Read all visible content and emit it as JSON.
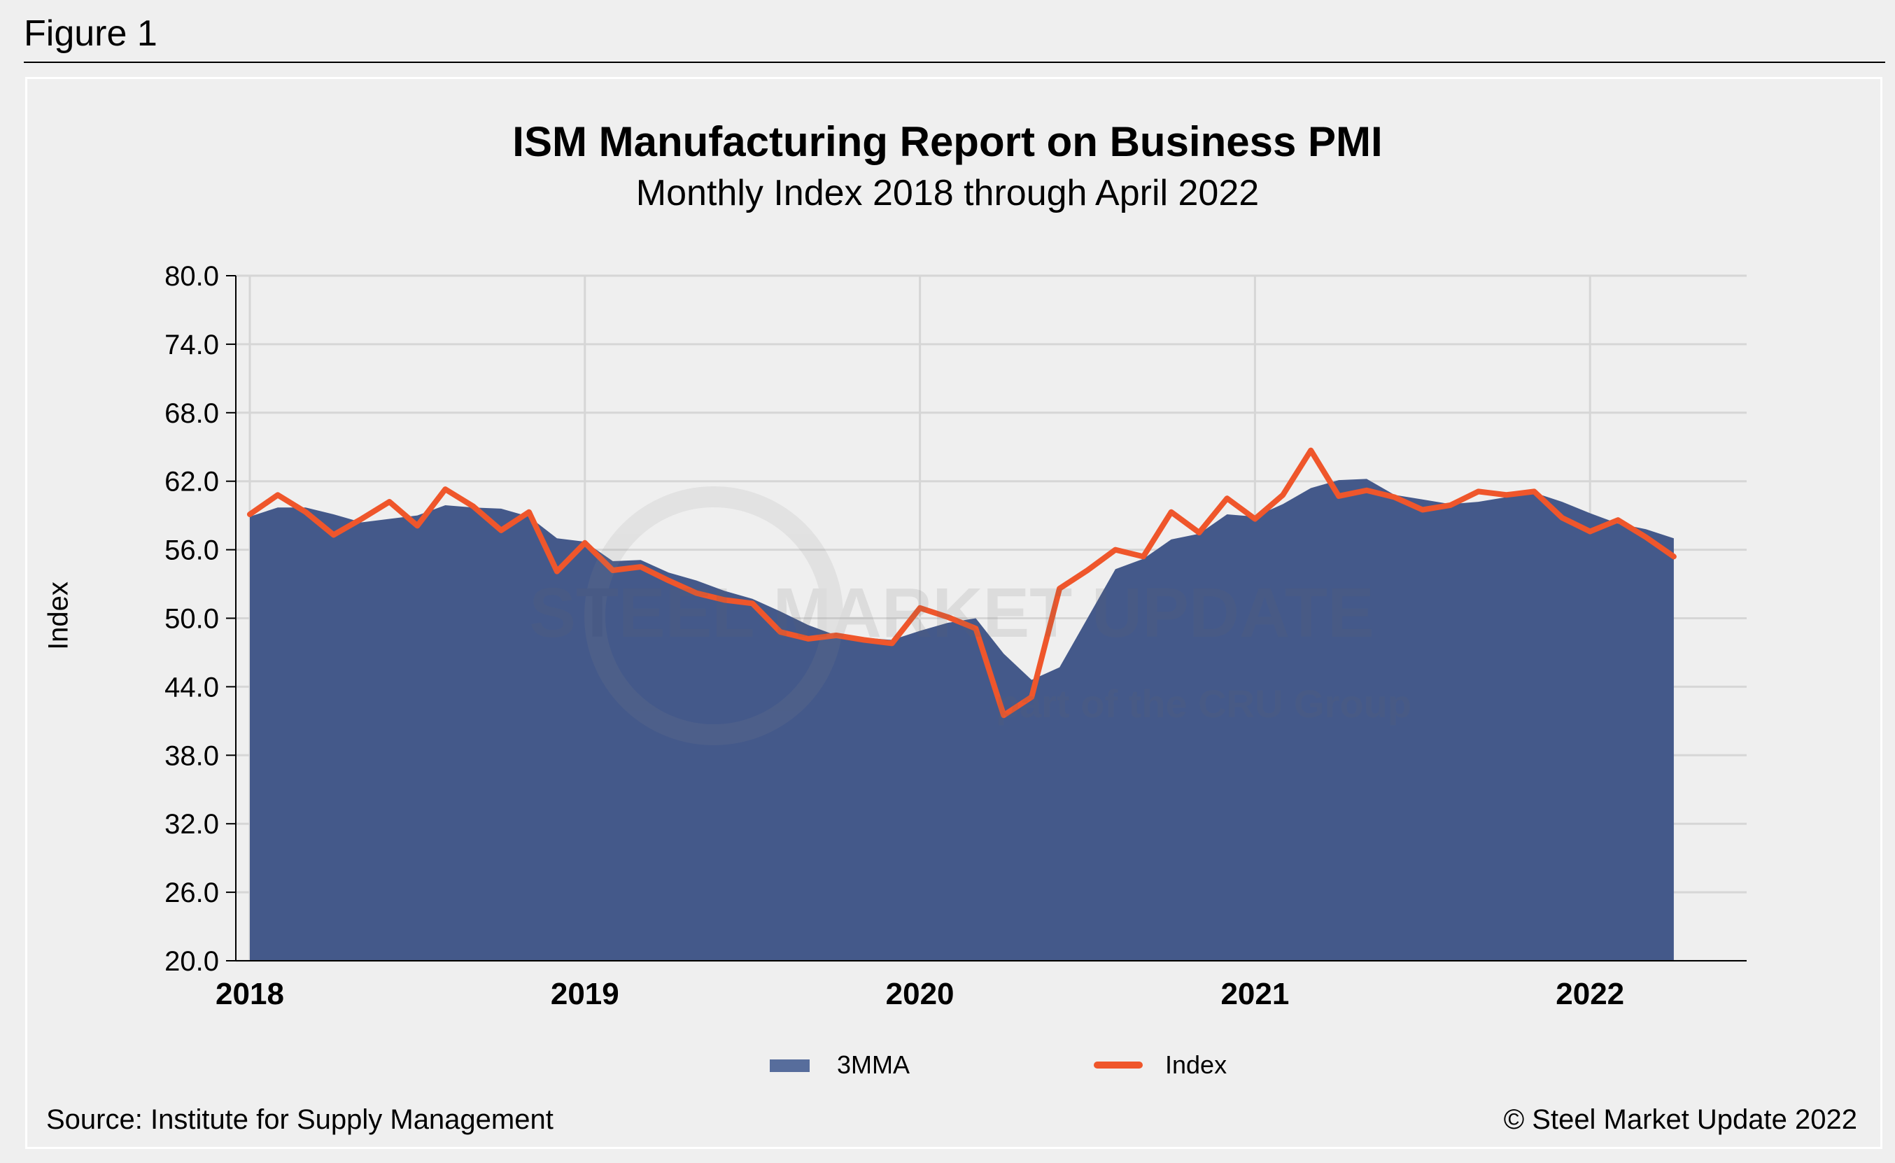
{
  "figure_label": "Figure 1",
  "source": "Source: Institute for Supply Management",
  "copyright": "© Steel Market Update 2022",
  "watermark": {
    "main": "STEEL MARKET UPDATE",
    "sub": "part of the CRU Group"
  },
  "colors": {
    "area": "#44598a",
    "legend_area": "#576d9c",
    "line": "#ef562b",
    "background": "#efefef",
    "grid": "#d6d6d6"
  },
  "chart_data": {
    "type": "area+line",
    "title": "ISM Manufacturing Report on Business PMI",
    "subtitle": "Monthly Index 2018 through April 2022",
    "ylabel": "Index",
    "xlabel": "",
    "ylim": [
      20,
      80
    ],
    "yticks": [
      "80.0",
      "74.0",
      "68.0",
      "62.0",
      "56.0",
      "50.0",
      "44.0",
      "38.0",
      "32.0",
      "26.0",
      "20.0"
    ],
    "xticks": [
      "2018",
      "2019",
      "2020",
      "2021",
      "2022"
    ],
    "x_start": "2018-01",
    "x_end": "2022-04",
    "frequency": "monthly",
    "grid": true,
    "legend_placement": "bottom",
    "series": [
      {
        "name": "3MMA",
        "type": "area",
        "values": [
          58.9,
          59.7,
          59.7,
          59.1,
          58.4,
          58.7,
          59.0,
          59.9,
          59.7,
          59.6,
          58.9,
          57.0,
          56.7,
          55.0,
          55.1,
          54.0,
          53.3,
          52.4,
          51.7,
          50.6,
          49.4,
          48.5,
          48.3,
          48.1,
          48.9,
          49.6,
          50.0,
          46.9,
          44.6,
          45.7,
          50.0,
          54.3,
          55.2,
          56.9,
          57.4,
          59.1,
          58.9,
          60.0,
          61.4,
          62.1,
          62.2,
          60.8,
          60.4,
          60.0,
          60.2,
          60.6,
          61.0,
          60.2,
          59.2,
          58.3,
          57.8,
          57.0
        ]
      },
      {
        "name": "Index",
        "type": "line",
        "values": [
          59.1,
          60.8,
          59.3,
          57.3,
          58.7,
          60.2,
          58.1,
          61.3,
          59.8,
          57.7,
          59.3,
          54.1,
          56.6,
          54.2,
          54.5,
          53.3,
          52.2,
          51.6,
          51.3,
          48.8,
          48.2,
          48.5,
          48.1,
          47.8,
          50.9,
          50.1,
          49.1,
          41.5,
          43.1,
          52.6,
          54.2,
          56.0,
          55.4,
          59.3,
          57.5,
          60.5,
          58.7,
          60.8,
          64.7,
          60.7,
          61.2,
          60.6,
          59.5,
          59.9,
          61.1,
          60.8,
          61.1,
          58.8,
          57.6,
          58.6,
          57.1,
          55.4
        ]
      }
    ]
  }
}
